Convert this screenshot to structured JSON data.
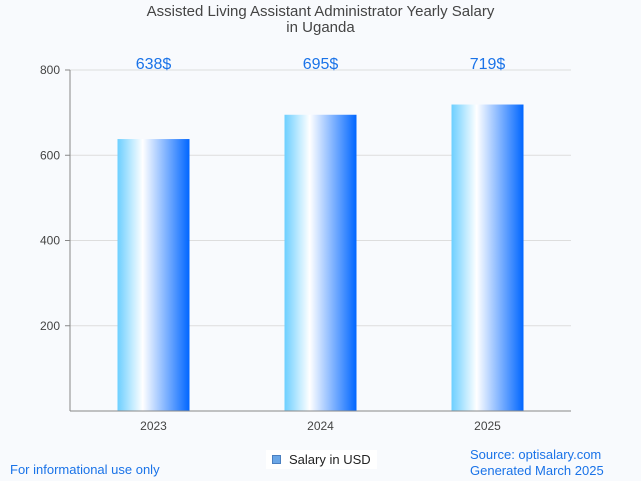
{
  "chart_data": {
    "type": "bar",
    "title": "Assisted Living Assistant Administrator Yearly Salary",
    "subtitle": "in Uganda",
    "categories": [
      "2023",
      "2024",
      "2025"
    ],
    "series": [
      {
        "name": "Salary in USD",
        "values": [
          638,
          695,
          719
        ]
      }
    ],
    "data_labels": [
      "638$",
      "695$",
      "719$"
    ],
    "xlabel": "",
    "ylabel": "",
    "ylim": [
      0,
      800
    ],
    "yticks": [
      200,
      400,
      600,
      800
    ],
    "grid": true,
    "legend_position": "bottom-center",
    "colors": {
      "bar_gradient": [
        "#6ccfff",
        "#ffffff",
        "#0066ff"
      ],
      "data_label": "#1a73e8",
      "gridline": "#dddddd",
      "axis": "#888888"
    }
  },
  "footer": {
    "disclaimer": "For informational use only",
    "source": "Source: optisalary.com",
    "generated": "Generated March 2025"
  }
}
